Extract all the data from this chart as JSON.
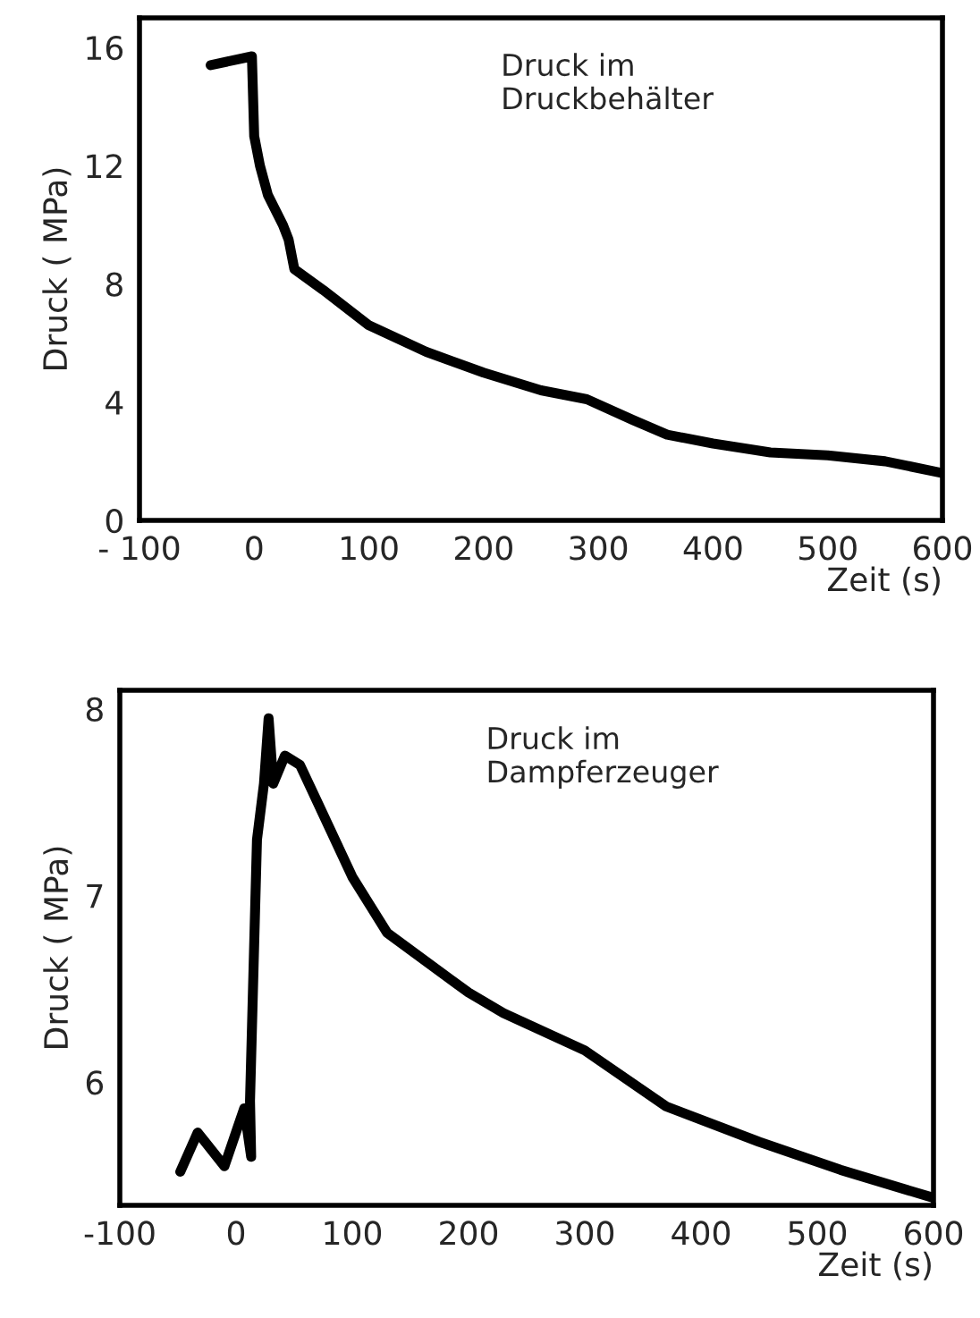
{
  "chart_data": [
    {
      "type": "line",
      "xlabel": "Zeit (s)",
      "ylabel": "Druck ( MPa)",
      "annotations": [
        "Druck im\nDruckbehälter"
      ],
      "xlim": [
        -100,
        600
      ],
      "xticks": [
        {
          "value": -100,
          "label": "- 100"
        },
        0,
        100,
        200,
        300,
        400,
        500,
        600
      ],
      "ylim": [
        0,
        17
      ],
      "yticks": [
        0,
        4,
        8,
        12,
        16
      ],
      "grid": false,
      "legend": false,
      "series": [
        {
          "color": "#000000",
          "x": [
            -38,
            -2,
            0,
            5,
            12,
            25,
            30,
            35,
            60,
            100,
            150,
            200,
            250,
            290,
            330,
            360,
            400,
            450,
            500,
            550,
            600
          ],
          "values": [
            15.4,
            15.7,
            13,
            12,
            11,
            10,
            9.5,
            8.5,
            7.8,
            6.6,
            5.7,
            5.0,
            4.4,
            4.1,
            3.4,
            2.9,
            2.6,
            2.3,
            2.2,
            2.0,
            1.6
          ]
        }
      ]
    },
    {
      "type": "line",
      "xlabel": "Zeit (s)",
      "ylabel": "Druck ( MPa)",
      "annotations": [
        "Druck im\nDampferzeuger"
      ],
      "xlim": [
        -100,
        600
      ],
      "xticks": [
        -100,
        0,
        100,
        200,
        300,
        400,
        500,
        600
      ],
      "ylim": [
        5.34,
        8.1
      ],
      "yticks": [
        6,
        7,
        8
      ],
      "grid": false,
      "legend": false,
      "series": [
        {
          "color": "#000000",
          "x": [
            -48,
            -33,
            -10,
            7,
            13,
            12,
            18,
            24,
            28,
            32,
            42,
            55,
            70,
            100,
            130,
            200,
            230,
            300,
            370,
            450,
            520,
            600
          ],
          "values": [
            5.52,
            5.73,
            5.55,
            5.86,
            5.6,
            5.9,
            7.3,
            7.6,
            7.95,
            7.6,
            7.75,
            7.7,
            7.5,
            7.1,
            6.8,
            6.48,
            6.37,
            6.17,
            5.87,
            5.68,
            5.53,
            5.38
          ]
        }
      ]
    }
  ]
}
